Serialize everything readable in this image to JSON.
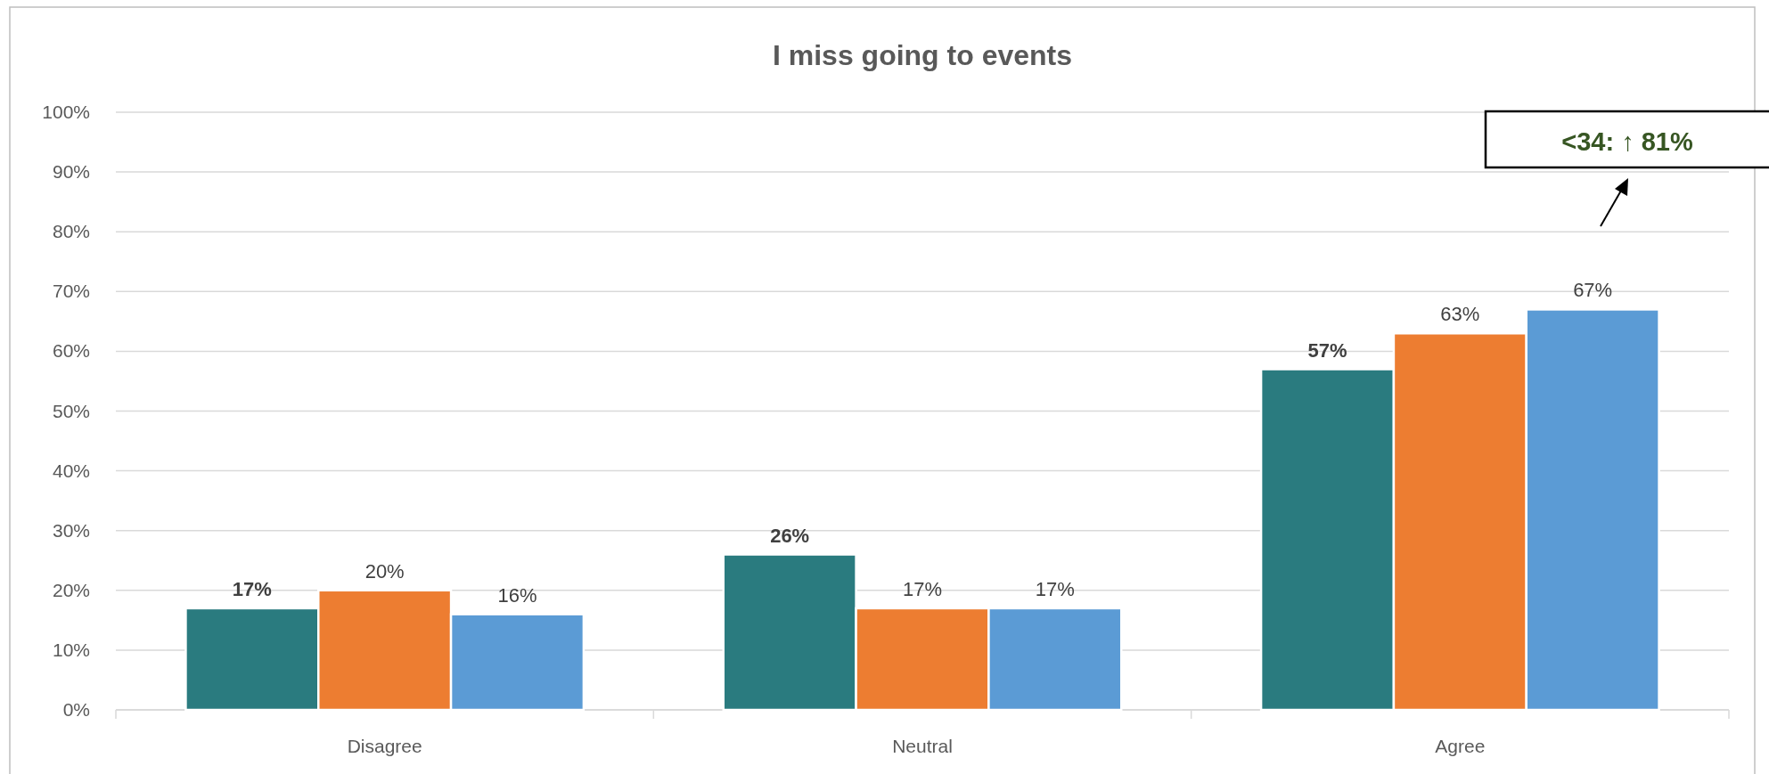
{
  "chart_data": {
    "type": "bar",
    "title": "I miss going to events",
    "categories": [
      "Disagree",
      "Neutral",
      "Agree"
    ],
    "series": [
      {
        "color": "#2a7b7f",
        "values": [
          17,
          26,
          57
        ],
        "value_labels": [
          "17%",
          "26%",
          "57%"
        ]
      },
      {
        "color": "#ed7d31",
        "values": [
          20,
          17,
          63
        ],
        "value_labels": [
          "20%",
          "17%",
          "63%"
        ]
      },
      {
        "color": "#5b9bd5",
        "values": [
          16,
          17,
          67
        ],
        "value_labels": [
          "16%",
          "17%",
          "67%"
        ]
      }
    ],
    "ylim": [
      0,
      100
    ],
    "yticks": [
      {
        "value": 0,
        "label": "0%"
      },
      {
        "value": 10,
        "label": "10%"
      },
      {
        "value": 20,
        "label": "20%"
      },
      {
        "value": 30,
        "label": "30%"
      },
      {
        "value": 40,
        "label": "40%"
      },
      {
        "value": 50,
        "label": "50%"
      },
      {
        "value": 60,
        "label": "60%"
      },
      {
        "value": 70,
        "label": "70%"
      },
      {
        "value": 80,
        "label": "80%"
      },
      {
        "value": 90,
        "label": "90%"
      },
      {
        "value": 100,
        "label": "100%"
      }
    ],
    "grid": "y",
    "annotations": [
      "<34: ↑ 81%"
    ]
  }
}
